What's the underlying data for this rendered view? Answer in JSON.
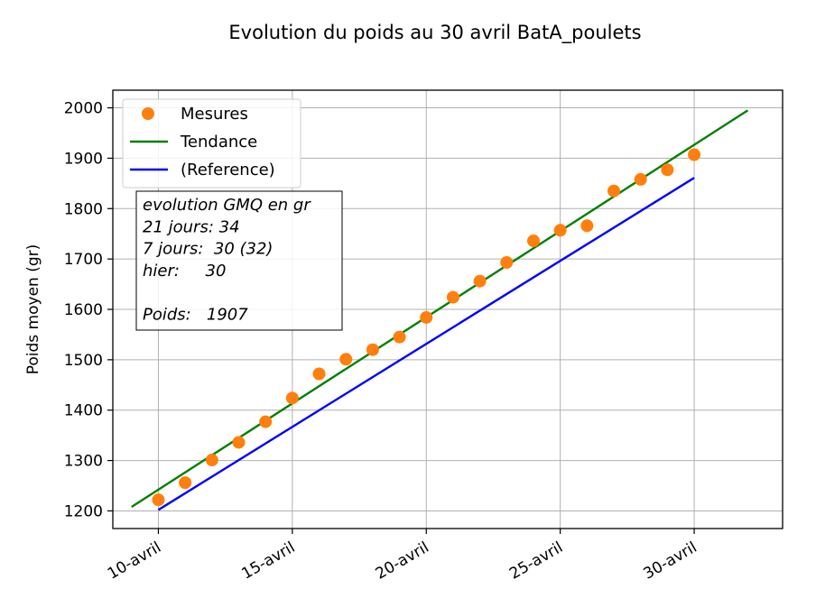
{
  "chart_data": {
    "type": "line",
    "title": "Evolution du poids au 30 avril BatA_poulets",
    "xlabel": "",
    "ylabel": "Poids moyen (gr)",
    "xlim": [
      8.3,
      33.3
    ],
    "ylim": [
      1165,
      2035
    ],
    "grid": true,
    "x_ticks": [
      10,
      15,
      20,
      25,
      30
    ],
    "x_tick_labels": [
      "10-avril",
      "15-avril",
      "20-avril",
      "25-avril",
      "30-avril"
    ],
    "y_ticks": [
      1200,
      1300,
      1400,
      1500,
      1600,
      1700,
      1800,
      1900,
      2000
    ],
    "series": [
      {
        "name": "Mesures",
        "kind": "scatter",
        "color": "#ff7f0e",
        "points": [
          {
            "x": 10,
            "y": 1222
          },
          {
            "x": 11,
            "y": 1256
          },
          {
            "x": 12,
            "y": 1301
          },
          {
            "x": 13,
            "y": 1336
          },
          {
            "x": 14,
            "y": 1377
          },
          {
            "x": 15,
            "y": 1424
          },
          {
            "x": 16,
            "y": 1472
          },
          {
            "x": 17,
            "y": 1501
          },
          {
            "x": 18,
            "y": 1520
          },
          {
            "x": 19,
            "y": 1545
          },
          {
            "x": 20,
            "y": 1584
          },
          {
            "x": 21,
            "y": 1624
          },
          {
            "x": 22,
            "y": 1656
          },
          {
            "x": 23,
            "y": 1693
          },
          {
            "x": 24,
            "y": 1736
          },
          {
            "x": 25,
            "y": 1757
          },
          {
            "x": 26,
            "y": 1766
          },
          {
            "x": 27,
            "y": 1835
          },
          {
            "x": 28,
            "y": 1858
          },
          {
            "x": 29,
            "y": 1877
          },
          {
            "x": 30,
            "y": 1907
          }
        ]
      },
      {
        "name": "Tendance",
        "kind": "line",
        "color": "#008000",
        "points": [
          {
            "x": 9,
            "y": 1208
          },
          {
            "x": 32,
            "y": 1995
          }
        ]
      },
      {
        "name": "(Reference)",
        "kind": "line",
        "color": "#0000ff",
        "points": [
          {
            "x": 10,
            "y": 1202
          },
          {
            "x": 30,
            "y": 1861
          }
        ]
      }
    ],
    "legend_position": "top-left",
    "annotation_lines": [
      "evolution GMQ en gr",
      "21 jours: 34",
      "7 jours:  30 (32)",
      "hier:     30",
      "",
      "Poids:   1907"
    ]
  }
}
